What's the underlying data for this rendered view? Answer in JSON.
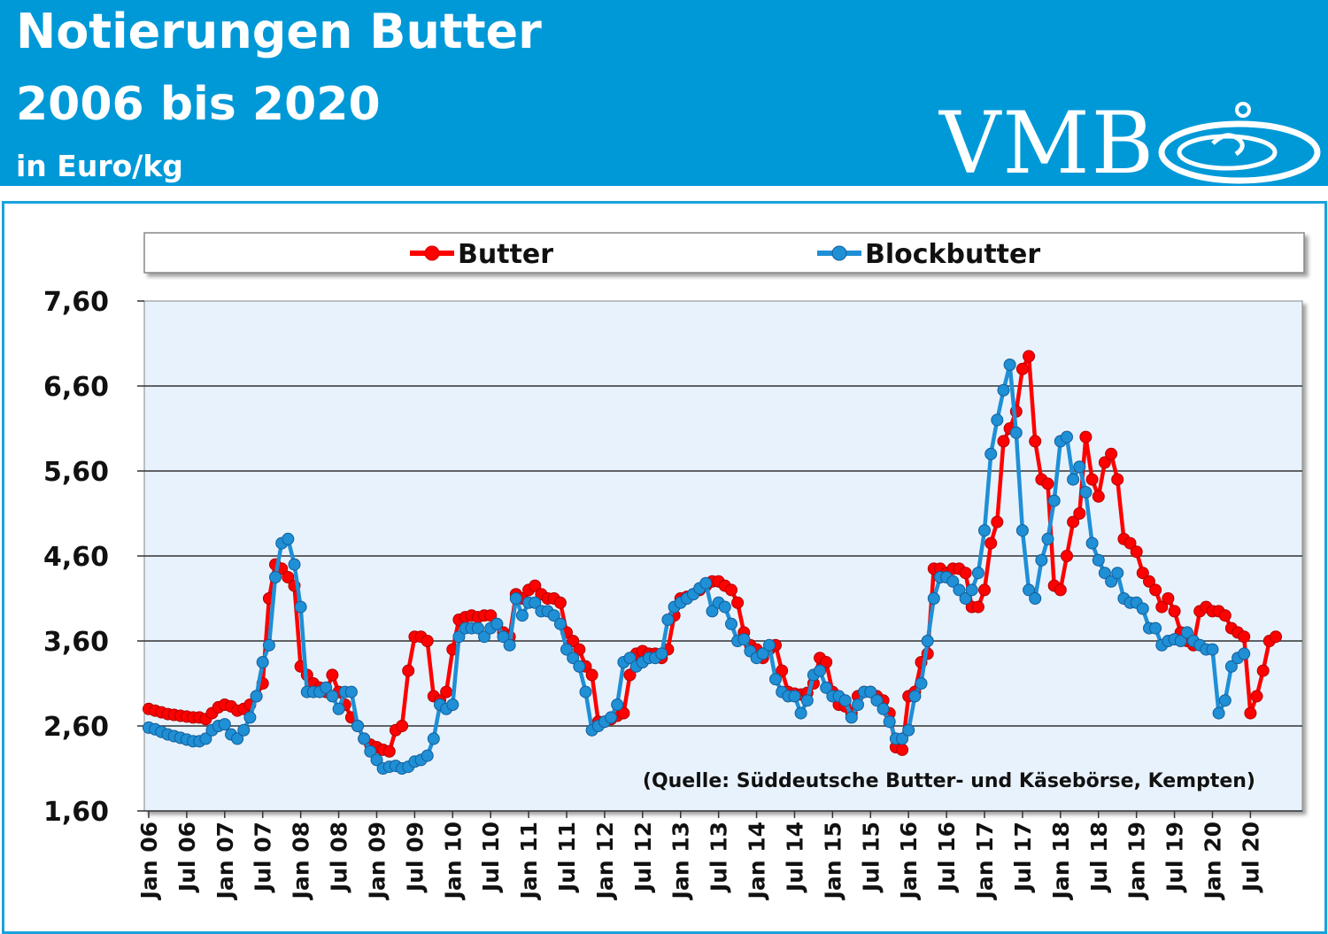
{
  "header": {
    "title_line1": "Notierungen Butter",
    "title_line2": "2006 bis 2020",
    "unit": "in Euro/kg",
    "logo_text": "VMB"
  },
  "colors": {
    "header_bg": "#0099d8",
    "frame_border": "#1aa1dc",
    "plot_bg": "#e8f2fc",
    "butter": "#ff0000",
    "blockbutter": "#1f8fd6"
  },
  "chart_data": {
    "type": "line",
    "xlabels": [
      "Jan 06",
      "Jul 06",
      "Jan 07",
      "Jul 07",
      "Jan 08",
      "Jul 08",
      "Jan 09",
      "Jul 09",
      "Jan 10",
      "Jul 10",
      "Jan 11",
      "Jul 11",
      "Jan 12",
      "Jul 12",
      "Jan 13",
      "Jul 13",
      "Jan 14",
      "Jul 14",
      "Jan 15",
      "Jul 15",
      "Jan 16",
      "Jul 16",
      "Jan 17",
      "Jul 17",
      "Jan 18",
      "Jul 18",
      "Jan 19",
      "Jul 19",
      "Jan 20",
      "Jul 20"
    ],
    "y_ticks": [
      "7,60",
      "6,60",
      "5,60",
      "4,60",
      "3,60",
      "2,60",
      "1,60"
    ],
    "ylim": [
      1.6,
      7.6
    ],
    "grid": true,
    "legend_position": "top",
    "source_note": "(Quelle: Süddeutsche Butter- und Käsebörse, Kempten)",
    "series": [
      {
        "name": "Butter",
        "values": [
          2.8,
          2.78,
          2.76,
          2.74,
          2.73,
          2.72,
          2.71,
          2.7,
          2.7,
          2.68,
          2.75,
          2.82,
          2.85,
          2.83,
          2.78,
          2.8,
          2.85,
          2.95,
          3.1,
          4.1,
          4.5,
          4.45,
          4.35,
          4.25,
          3.3,
          3.2,
          3.1,
          3.05,
          3.0,
          3.2,
          3.0,
          2.85,
          2.7,
          2.6,
          2.45,
          2.38,
          2.35,
          2.32,
          2.3,
          2.55,
          2.6,
          3.25,
          3.65,
          3.65,
          3.6,
          2.95,
          2.9,
          3.0,
          3.5,
          3.85,
          3.88,
          3.9,
          3.88,
          3.9,
          3.9,
          3.8,
          3.7,
          3.65,
          4.15,
          4.1,
          4.2,
          4.25,
          4.15,
          4.1,
          4.1,
          4.05,
          3.7,
          3.6,
          3.5,
          3.3,
          3.2,
          2.65,
          2.65,
          2.68,
          2.72,
          2.75,
          3.2,
          3.45,
          3.48,
          3.45,
          3.45,
          3.4,
          3.5,
          3.9,
          4.1,
          4.12,
          4.15,
          4.2,
          4.25,
          4.3,
          4.3,
          4.25,
          4.2,
          4.05,
          3.7,
          3.55,
          3.5,
          3.4,
          3.5,
          3.55,
          3.25,
          3.0,
          2.98,
          2.97,
          2.99,
          3.1,
          3.4,
          3.35,
          3.0,
          2.85,
          2.83,
          2.75,
          2.95,
          3.0,
          3.0,
          2.95,
          2.9,
          2.75,
          2.35,
          2.32,
          2.95,
          3.0,
          3.35,
          3.45,
          4.45,
          4.45,
          4.4,
          4.45,
          4.45,
          4.4,
          4.0,
          4.0,
          4.2,
          4.75,
          5.0,
          5.95,
          6.1,
          6.3,
          6.8,
          6.95,
          5.95,
          5.5,
          5.45,
          4.25,
          4.2,
          4.6,
          5.0,
          5.1,
          6.0,
          5.5,
          5.3,
          5.7,
          5.8,
          5.5,
          4.8,
          4.75,
          4.65,
          4.4,
          4.3,
          4.2,
          4.0,
          4.1,
          3.95,
          3.7,
          3.6,
          3.55,
          3.95,
          4.0,
          3.95,
          3.95,
          3.9,
          3.75,
          3.7,
          3.65,
          2.75,
          2.95,
          3.25,
          3.6,
          3.65
        ]
      },
      {
        "name": "Blockbutter",
        "values": [
          2.58,
          2.56,
          2.53,
          2.5,
          2.48,
          2.46,
          2.44,
          2.42,
          2.42,
          2.45,
          2.55,
          2.6,
          2.62,
          2.5,
          2.45,
          2.55,
          2.7,
          2.95,
          3.35,
          3.55,
          4.35,
          4.75,
          4.8,
          4.5,
          4.0,
          3.0,
          3.0,
          3.0,
          3.05,
          2.95,
          2.8,
          3.0,
          3.0,
          2.6,
          2.45,
          2.3,
          2.2,
          2.1,
          2.12,
          2.13,
          2.1,
          2.12,
          2.18,
          2.2,
          2.25,
          2.45,
          2.85,
          2.8,
          2.85,
          3.65,
          3.75,
          3.75,
          3.75,
          3.65,
          3.75,
          3.8,
          3.65,
          3.55,
          4.1,
          3.9,
          4.05,
          4.05,
          3.95,
          3.95,
          3.9,
          3.8,
          3.5,
          3.4,
          3.3,
          3.0,
          2.55,
          2.6,
          2.65,
          2.7,
          2.85,
          3.35,
          3.4,
          3.3,
          3.35,
          3.4,
          3.4,
          3.45,
          3.85,
          4.0,
          4.05,
          4.1,
          4.15,
          4.22,
          4.28,
          3.95,
          4.05,
          4.0,
          3.8,
          3.6,
          3.62,
          3.48,
          3.4,
          3.45,
          3.55,
          3.15,
          3.0,
          2.95,
          2.95,
          2.75,
          2.9,
          3.2,
          3.25,
          3.05,
          2.95,
          2.95,
          2.9,
          2.7,
          2.85,
          3.0,
          3.0,
          2.9,
          2.8,
          2.65,
          2.45,
          2.45,
          2.55,
          2.95,
          3.1,
          3.6,
          4.1,
          4.35,
          4.35,
          4.3,
          4.2,
          4.1,
          4.2,
          4.4,
          4.9,
          5.8,
          6.2,
          6.55,
          6.85,
          6.05,
          4.9,
          4.2,
          4.1,
          4.55,
          4.8,
          5.25,
          5.95,
          6.0,
          5.5,
          5.65,
          5.35,
          4.75,
          4.55,
          4.4,
          4.3,
          4.4,
          4.1,
          4.05,
          4.05,
          3.98,
          3.75,
          3.75,
          3.55,
          3.6,
          3.62,
          3.6,
          3.7,
          3.6,
          3.55,
          3.5,
          3.5,
          2.75,
          2.9,
          3.3,
          3.4,
          3.45
        ]
      }
    ]
  }
}
